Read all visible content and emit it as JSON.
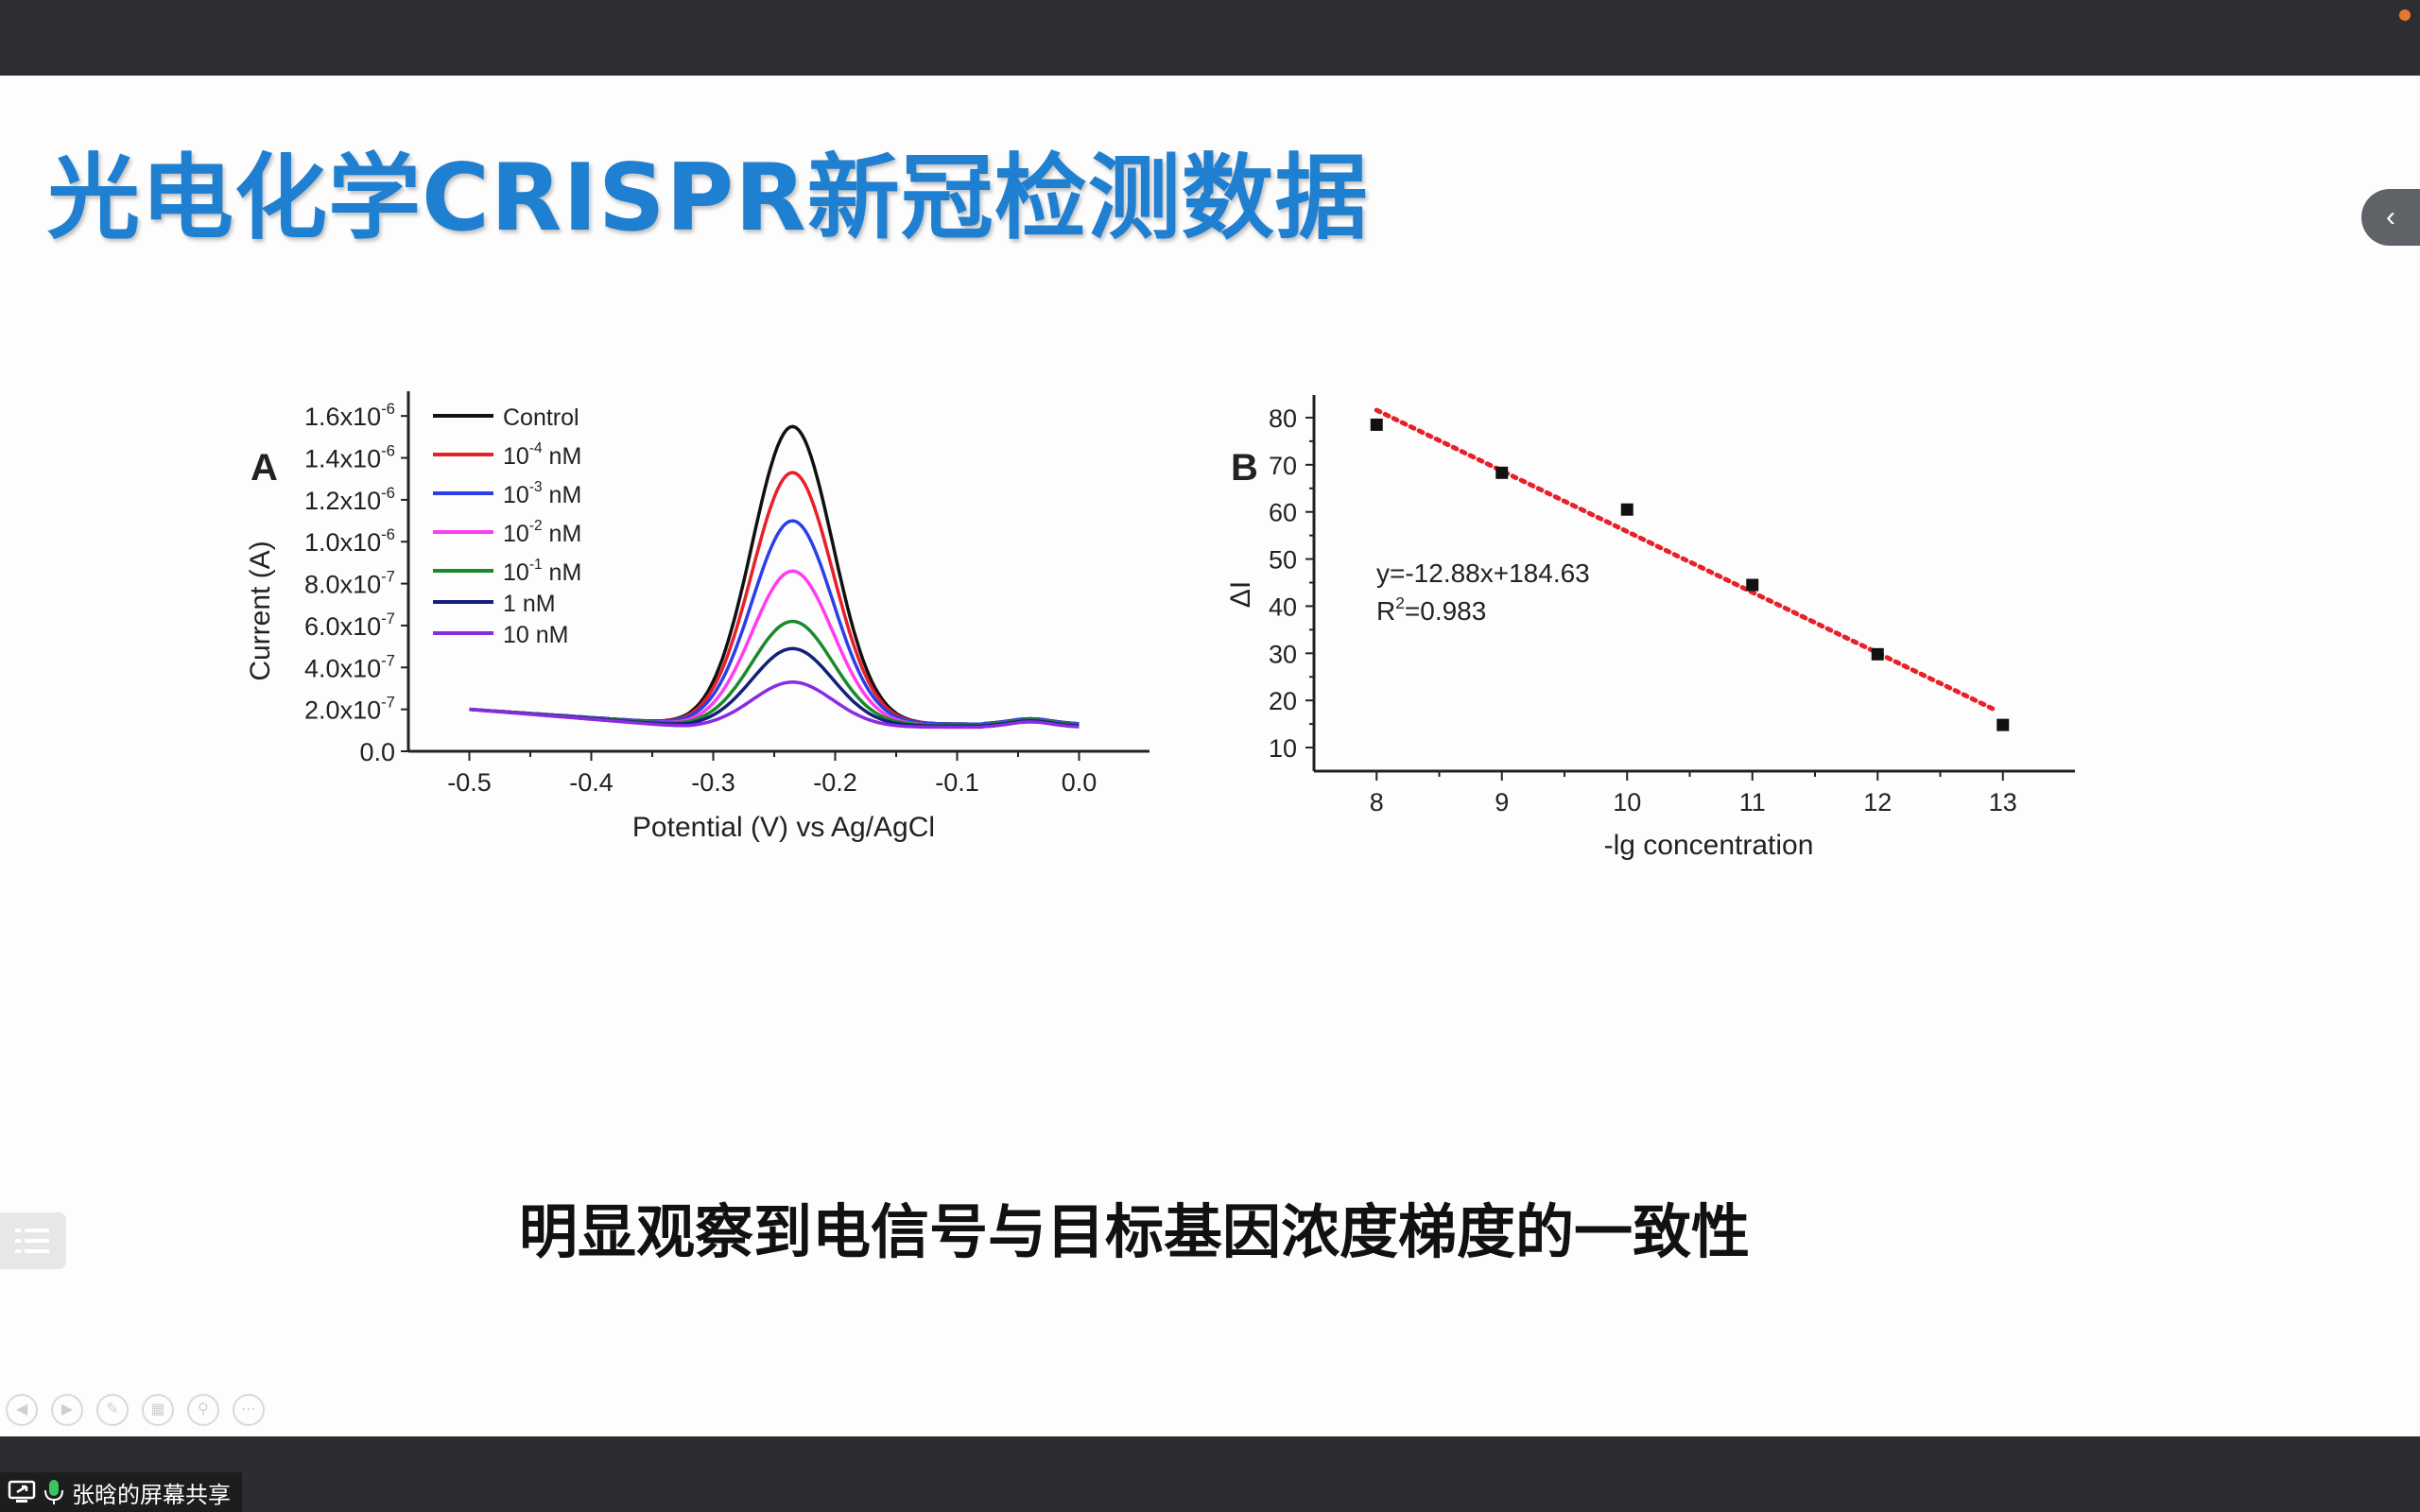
{
  "slide": {
    "title": "光电化学CRISPR新冠检测数据",
    "conclusion": "明显观察到电信号与目标基因浓度梯度的一致性"
  },
  "screen_share": {
    "label": "张晗的屏幕共享"
  },
  "icons": {
    "collapse": "chevron-left-icon",
    "outline": "list-icon",
    "share": "screen-share-icon",
    "mic": "microphone-icon"
  },
  "colors": {
    "title": "#1f7fd0",
    "accent_dot": "#e8782e"
  },
  "chart_data": [
    {
      "type": "line",
      "panel_label": "A",
      "xlabel": "Potential (V) vs Ag/AgCl",
      "ylabel": "Current (A)",
      "xlim": [
        -0.55,
        0.05
      ],
      "ylim": [
        0,
        1.7e-06
      ],
      "xticks": [
        "-0.5",
        "-0.4",
        "-0.3",
        "-0.2",
        "-0.1",
        "0.0"
      ],
      "yticks": [
        {
          "v": 0,
          "label": "0.0",
          "exp": ""
        },
        {
          "v": 2e-07,
          "label": "2.0x10",
          "exp": "-7"
        },
        {
          "v": 4e-07,
          "label": "4.0x10",
          "exp": "-7"
        },
        {
          "v": 6e-07,
          "label": "6.0x10",
          "exp": "-7"
        },
        {
          "v": 8e-07,
          "label": "8.0x10",
          "exp": "-7"
        },
        {
          "v": 1e-06,
          "label": "1.0x10",
          "exp": "-6"
        },
        {
          "v": 1.2e-06,
          "label": "1.2x10",
          "exp": "-6"
        },
        {
          "v": 1.4e-06,
          "label": "1.4x10",
          "exp": "-6"
        },
        {
          "v": 1.6e-06,
          "label": "1.6x10",
          "exp": "-6"
        }
      ],
      "legend_position": "top-left",
      "series": [
        {
          "name": "Control",
          "label": "Control",
          "exp": "",
          "suffix": "",
          "color": "#111111",
          "peak": 1.55e-06,
          "base": 1.3e-07
        },
        {
          "name": "10-4 nM",
          "label": "10",
          "exp": "-4",
          "suffix": " nM",
          "color": "#e8202a",
          "peak": 1.33e-06,
          "base": 1.3e-07
        },
        {
          "name": "10-3 nM",
          "label": "10",
          "exp": "-3",
          "suffix": " nM",
          "color": "#2a3fe8",
          "peak": 1.1e-06,
          "base": 1.3e-07
        },
        {
          "name": "10-2 nM",
          "label": "10",
          "exp": "-2",
          "suffix": " nM",
          "color": "#ff3cf0",
          "peak": 8.6e-07,
          "base": 1.25e-07
        },
        {
          "name": "10-1 nM",
          "label": "10",
          "exp": "-1",
          "suffix": " nM",
          "color": "#1a8a2a",
          "peak": 6.2e-07,
          "base": 1.25e-07
        },
        {
          "name": "1 nM",
          "label": "1 nM",
          "exp": "",
          "suffix": "",
          "color": "#16207a",
          "peak": 4.9e-07,
          "base": 1.2e-07
        },
        {
          "name": "10 nM",
          "label": "10 nM",
          "exp": "",
          "suffix": "",
          "color": "#8a2be2",
          "peak": 3.3e-07,
          "base": 1.15e-07
        }
      ],
      "peak_potential": -0.235,
      "start_current": 2e-07
    },
    {
      "type": "scatter",
      "panel_label": "B",
      "xlabel": "-lg concentration",
      "ylabel": "ΔI",
      "xlim": [
        7.5,
        13.5
      ],
      "ylim": [
        5,
        84
      ],
      "xticks": [
        8,
        9,
        10,
        11,
        12,
        13
      ],
      "yticks": [
        10,
        20,
        30,
        40,
        50,
        60,
        70,
        80
      ],
      "x": [
        8,
        9,
        10,
        11,
        12,
        13
      ],
      "y": [
        78.5,
        68.3,
        60.5,
        44.5,
        29.8,
        14.8
      ],
      "fit": {
        "slope": -12.88,
        "intercept": 184.63,
        "color": "#e8202a"
      },
      "equation": "y=-12.88x+184.63",
      "r2_label": "R",
      "r2_exp": "2",
      "r2_value": "=0.983"
    }
  ]
}
